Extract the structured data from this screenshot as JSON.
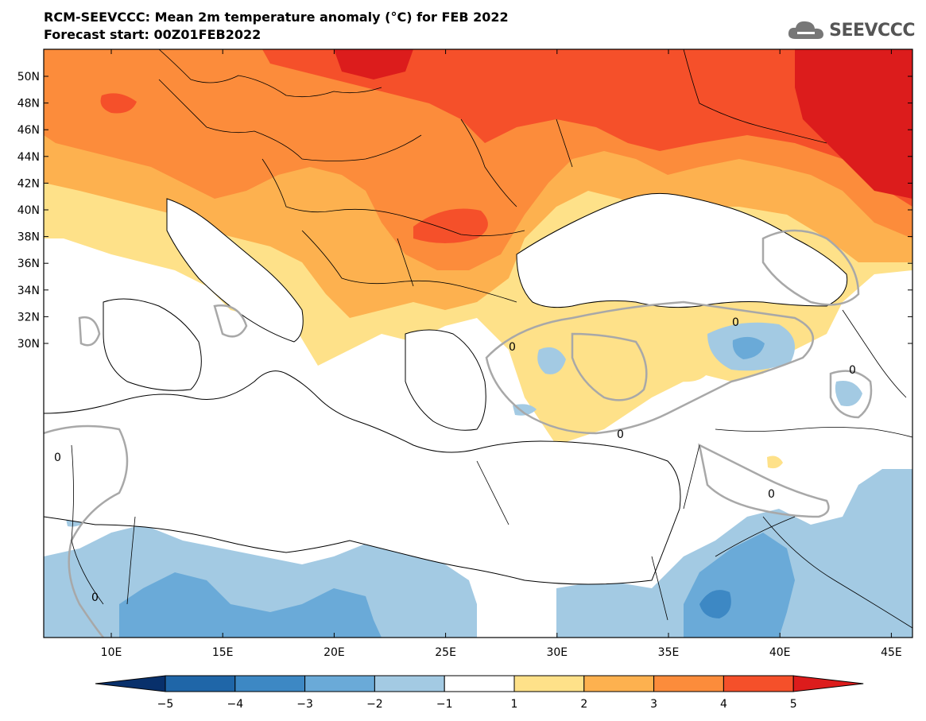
{
  "header": {
    "title": "RCM-SEEVCCC: Mean 2m temperature anomaly (°C) for FEB 2022",
    "subtitle": "Forecast start: 00Z01FEB2022"
  },
  "logo": {
    "text": "SEEVCCC",
    "icon": "cloud-icon"
  },
  "map": {
    "lat_ticks": [
      "50N",
      "48N",
      "46N",
      "44N",
      "42N",
      "40N",
      "38N",
      "36N",
      "34N",
      "32N",
      "30N"
    ],
    "lon_ticks": [
      "10E",
      "15E",
      "20E",
      "25E",
      "30E",
      "35E",
      "40E",
      "45E"
    ],
    "contour_label": "0"
  },
  "colorbar": {
    "labels": [
      "−5",
      "−4",
      "−3",
      "−2",
      "−1",
      "1",
      "2",
      "3",
      "4",
      "5"
    ],
    "colors": [
      "#08306b",
      "#1f66a8",
      "#3d88c4",
      "#6aaad8",
      "#a3cae3",
      "#ffffff",
      "#fee189",
      "#fdb14f",
      "#fc8c3b",
      "#f5502a",
      "#dc1c1c"
    ]
  }
}
